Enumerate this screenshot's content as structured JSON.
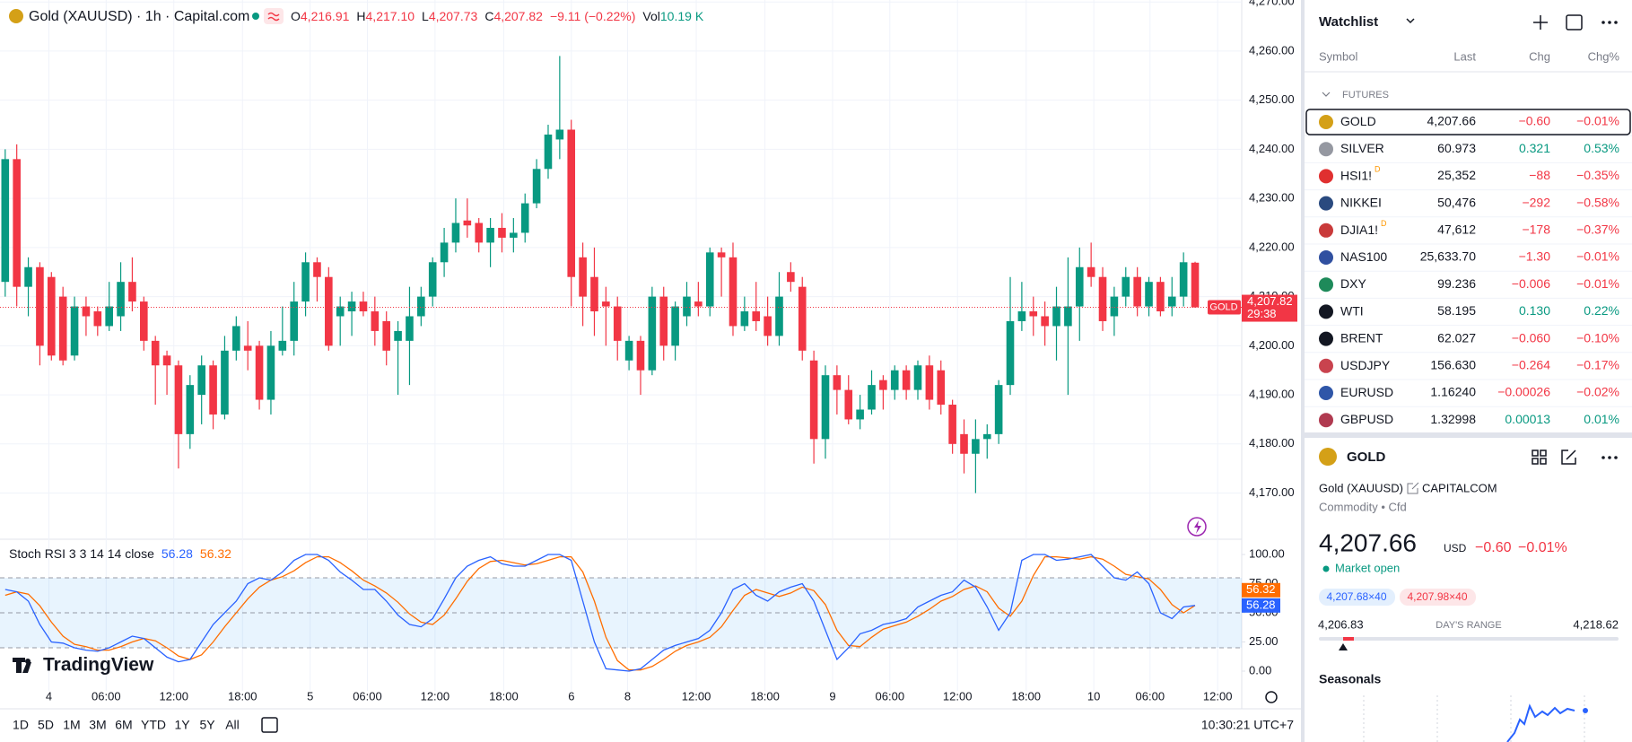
{
  "header": {
    "symbol": "Gold (XAUUSD) · 1h · Capital.com",
    "ohlc": [
      {
        "key": "O",
        "value": "4,216.91"
      },
      {
        "key": "H",
        "value": "4,217.10"
      },
      {
        "key": "L",
        "value": "4,207.73"
      },
      {
        "key": "C",
        "value": "4,207.82"
      }
    ],
    "change": "−9.11 (−0.22%)",
    "vol_key": "Vol",
    "vol": "10.19 K"
  },
  "chart": {
    "ylim": [
      4160.6,
      4270.4
    ],
    "yticks": [
      {
        "value": 4170,
        "label": "4,170.00"
      },
      {
        "value": 4180,
        "label": "4,180.00"
      },
      {
        "value": 4190,
        "label": "4,190.00"
      },
      {
        "value": 4200,
        "label": "4,200.00"
      },
      {
        "value": 4210,
        "label": "4,210.00"
      },
      {
        "value": 4220,
        "label": "4,220.00"
      },
      {
        "value": 4230,
        "label": "4,230.00"
      },
      {
        "value": 4240,
        "label": "4,240.00"
      },
      {
        "value": 4250,
        "label": "4,250.00"
      },
      {
        "value": 4260,
        "label": "4,260.00"
      },
      {
        "value": 4270,
        "label": "4,270.00"
      }
    ],
    "up_color": "#089981",
    "down_color": "#f23645",
    "candles": [
      [
        4213,
        4240,
        4210,
        4238
      ],
      [
        4238,
        4241,
        4208,
        4212
      ],
      [
        4212,
        4218,
        4206,
        4216
      ],
      [
        4216,
        4217,
        4196,
        4200
      ],
      [
        4214,
        4215,
        4197,
        4198
      ],
      [
        4210,
        4212,
        4196,
        4197
      ],
      [
        4198,
        4210,
        4197,
        4208
      ],
      [
        4208,
        4210,
        4202,
        4206
      ],
      [
        4207,
        4208,
        4202,
        4204
      ],
      [
        4204,
        4213,
        4203,
        4208
      ],
      [
        4206,
        4217,
        4203,
        4213
      ],
      [
        4213,
        4218,
        4207,
        4209
      ],
      [
        4209,
        4210,
        4199,
        4201
      ],
      [
        4201,
        4202,
        4188,
        4196
      ],
      [
        4198,
        4199,
        4190,
        4196
      ],
      [
        4196,
        4197,
        4175,
        4182
      ],
      [
        4182,
        4194,
        4179,
        4192
      ],
      [
        4190,
        4198,
        4184,
        4196
      ],
      [
        4196,
        4197,
        4183,
        4186
      ],
      [
        4186,
        4202,
        4185,
        4199
      ],
      [
        4199,
        4206,
        4197,
        4204
      ],
      [
        4200,
        4205,
        4195,
        4199
      ],
      [
        4200,
        4201,
        4187,
        4189
      ],
      [
        4189,
        4203,
        4186,
        4200
      ],
      [
        4199,
        4208,
        4198,
        4201
      ],
      [
        4201,
        4213,
        4198,
        4209
      ],
      [
        4209,
        4219,
        4206,
        4217
      ],
      [
        4217,
        4218,
        4209,
        4214
      ],
      [
        4214,
        4216,
        4199,
        4200
      ],
      [
        4206,
        4210,
        4200,
        4208
      ],
      [
        4207,
        4211,
        4202,
        4209
      ],
      [
        4209,
        4211,
        4206,
        4207
      ],
      [
        4207,
        4210,
        4200,
        4203
      ],
      [
        4205,
        4207,
        4196,
        4199
      ],
      [
        4201,
        4205,
        4190,
        4203
      ],
      [
        4201,
        4212,
        4192,
        4206
      ],
      [
        4206,
        4212,
        4204,
        4210
      ],
      [
        4210,
        4218,
        4208,
        4217
      ],
      [
        4217,
        4224,
        4214,
        4221
      ],
      [
        4221,
        4230,
        4219,
        4225
      ],
      [
        4225.5,
        4230,
        4222,
        4224.5
      ],
      [
        4225,
        4226,
        4219,
        4221
      ],
      [
        4221,
        4226,
        4216,
        4224
      ],
      [
        4224,
        4227,
        4219,
        4222
      ],
      [
        4222,
        4226,
        4219,
        4223
      ],
      [
        4223,
        4231,
        4221,
        4229
      ],
      [
        4229,
        4238,
        4228,
        4236
      ],
      [
        4236,
        4245,
        4234,
        4243
      ],
      [
        4242,
        4259,
        4238,
        4244
      ],
      [
        4244,
        4246,
        4208,
        4214
      ],
      [
        4218,
        4221,
        4204,
        4210
      ],
      [
        4214,
        4220,
        4202,
        4207
      ],
      [
        4209,
        4212,
        4200,
        4208
      ],
      [
        4208,
        4210,
        4197,
        4201
      ],
      [
        4197,
        4202,
        4195,
        4201
      ],
      [
        4201,
        4202,
        4190,
        4195
      ],
      [
        4195,
        4212,
        4194,
        4210
      ],
      [
        4210,
        4212,
        4197,
        4200
      ],
      [
        4200,
        4209,
        4197,
        4208
      ],
      [
        4206,
        4213,
        4204,
        4210
      ],
      [
        4209,
        4213,
        4206,
        4208
      ],
      [
        4208,
        4220,
        4206,
        4219
      ],
      [
        4219,
        4220,
        4210,
        4218
      ],
      [
        4218,
        4221,
        4202,
        4204
      ],
      [
        4204,
        4210,
        4203,
        4207
      ],
      [
        4207,
        4213,
        4203,
        4205
      ],
      [
        4206,
        4210,
        4200,
        4202
      ],
      [
        4202,
        4215,
        4200,
        4210
      ],
      [
        4215,
        4217,
        4211,
        4213
      ],
      [
        4212,
        4214,
        4197,
        4199
      ],
      [
        4197,
        4199,
        4176,
        4181
      ],
      [
        4181,
        4196,
        4177,
        4194
      ],
      [
        4194,
        4196,
        4186,
        4191
      ],
      [
        4191,
        4194,
        4184,
        4185
      ],
      [
        4185,
        4190,
        4183,
        4187
      ],
      [
        4187,
        4195,
        4186,
        4192
      ],
      [
        4193,
        4194,
        4187,
        4191
      ],
      [
        4191,
        4196,
        4189,
        4195
      ],
      [
        4195,
        4196,
        4189,
        4191
      ],
      [
        4191,
        4197,
        4189,
        4196
      ],
      [
        4196,
        4198,
        4187,
        4189
      ],
      [
        4195,
        4197,
        4186,
        4188
      ],
      [
        4188,
        4189,
        4178,
        4180
      ],
      [
        4182,
        4185,
        4174,
        4178
      ],
      [
        4178,
        4185,
        4170,
        4181
      ],
      [
        4181,
        4184,
        4177,
        4182
      ],
      [
        4182,
        4193,
        4180,
        4192
      ],
      [
        4192,
        4214,
        4190,
        4205
      ],
      [
        4205,
        4213,
        4203,
        4207
      ],
      [
        4207,
        4210,
        4202,
        4206
      ],
      [
        4206,
        4209,
        4200,
        4204
      ],
      [
        4204,
        4212,
        4197,
        4208
      ],
      [
        4204,
        4218,
        4190,
        4208
      ],
      [
        4208,
        4220,
        4201,
        4216
      ],
      [
        4216,
        4221,
        4212,
        4214
      ],
      [
        4214,
        4216,
        4203,
        4205
      ],
      [
        4206,
        4212,
        4202,
        4210
      ],
      [
        4210,
        4216,
        4208,
        4214
      ],
      [
        4214,
        4216,
        4206,
        4208
      ],
      [
        4208,
        4214,
        4206,
        4213
      ],
      [
        4213,
        4214,
        4206,
        4207
      ],
      [
        4208,
        4214,
        4206,
        4210
      ],
      [
        4210,
        4219,
        4208,
        4217
      ],
      [
        4216.91,
        4217.1,
        4207.73,
        4207.82
      ]
    ],
    "last_price": {
      "symbol": "GOLD",
      "value": 4207.82,
      "label": "4,207.82",
      "countdown": "29:38"
    }
  },
  "x_axis": {
    "labels": [
      "4",
      "06:00",
      "12:00",
      "18:00",
      "5",
      "06:00",
      "12:00",
      "18:00",
      "6",
      "8",
      "12:00",
      "18:00",
      "9",
      "06:00",
      "12:00",
      "18:00",
      "10",
      "06:00",
      "12:00"
    ]
  },
  "stoch": {
    "title": "Stoch RSI 3 3 14 14 close",
    "ylim": [
      0,
      100
    ],
    "yticks": [
      {
        "value": 0,
        "label": "0.00"
      },
      {
        "value": 25,
        "label": "25.00"
      },
      {
        "value": 50,
        "label": "50.00"
      },
      {
        "value": 75,
        "label": "75.00"
      },
      {
        "value": 100,
        "label": "100.00"
      }
    ],
    "bands": [
      20,
      50,
      80
    ],
    "k": {
      "color": "#2962ff",
      "values": [
        70,
        68,
        60,
        40,
        25,
        24,
        20,
        18,
        17,
        20,
        25,
        30,
        28,
        20,
        12,
        8,
        10,
        25,
        40,
        50,
        60,
        75,
        80,
        78,
        85,
        95,
        100,
        100,
        95,
        85,
        78,
        70,
        70,
        60,
        48,
        40,
        38,
        45,
        62,
        80,
        90,
        95,
        98,
        92,
        90,
        90,
        95,
        100,
        100,
        95,
        60,
        25,
        2,
        1,
        0,
        2,
        10,
        18,
        22,
        25,
        28,
        35,
        50,
        70,
        75,
        65,
        60,
        68,
        72,
        75,
        60,
        35,
        10,
        20,
        32,
        35,
        40,
        42,
        45,
        55,
        60,
        65,
        68,
        78,
        72,
        55,
        35,
        50,
        95,
        100,
        100,
        95,
        96,
        98,
        100,
        90,
        80,
        78,
        85,
        75,
        50,
        45,
        55,
        56.28
      ]
    },
    "d": {
      "color": "#ff6d00",
      "values": [
        65,
        68,
        66,
        56,
        42,
        30,
        23,
        21,
        18,
        18,
        21,
        25,
        28,
        26,
        20,
        13,
        10,
        14,
        25,
        38,
        50,
        62,
        72,
        78,
        81,
        86,
        93,
        98,
        98,
        93,
        86,
        78,
        73,
        67,
        59,
        49,
        42,
        40,
        48,
        62,
        77,
        88,
        94,
        95,
        93,
        91,
        92,
        95,
        98,
        98,
        85,
        60,
        29,
        9,
        1,
        1,
        4,
        10,
        17,
        22,
        25,
        29,
        38,
        52,
        65,
        70,
        67,
        64,
        67,
        72,
        69,
        57,
        35,
        22,
        21,
        29,
        36,
        39,
        42,
        47,
        53,
        60,
        64,
        70,
        73,
        68,
        54,
        47,
        60,
        82,
        98,
        98,
        97,
        96,
        98,
        96,
        90,
        83,
        81,
        79,
        70,
        57,
        50,
        56.32
      ]
    }
  },
  "logo": "TradingView",
  "toolbar": {
    "ranges": [
      "1D",
      "5D",
      "1M",
      "3M",
      "6M",
      "YTD",
      "1Y",
      "5Y",
      "All"
    ],
    "clock": "10:30:21 UTC+7"
  },
  "watchlist": {
    "title": "Watchlist",
    "columns": [
      "Symbol",
      "Last",
      "Chg",
      "Chg%"
    ],
    "group": "FUTURES",
    "rows": [
      {
        "icon": "#d4a017",
        "symbol": "GOLD",
        "last": "4,207.66",
        "chg": "−0.60",
        "chg_pct": "−0.01%"
      },
      {
        "icon": "#9598a1",
        "symbol": "SILVER",
        "last": "60.973",
        "chg": "0.321",
        "chg_pct": "0.53%"
      },
      {
        "icon": "#e03030",
        "symbol": "HSI1!",
        "badge": "D",
        "last": "25,352",
        "chg": "−88",
        "chg_pct": "−0.35%"
      },
      {
        "icon": "#2a4a7f",
        "symbol": "NIKKEI",
        "last": "50,476",
        "chg": "−292",
        "chg_pct": "−0.58%"
      },
      {
        "icon": "#c93a3a",
        "symbol": "DJIA1!",
        "badge": "D",
        "last": "47,612",
        "chg": "−178",
        "chg_pct": "−0.37%"
      },
      {
        "icon": "#3050a0",
        "symbol": "NAS100",
        "last": "25,633.70",
        "chg": "−1.30",
        "chg_pct": "−0.01%"
      },
      {
        "icon": "#1e8a5a",
        "symbol": "DXY",
        "last": "99.236",
        "chg": "−0.006",
        "chg_pct": "−0.01%"
      },
      {
        "icon": "#131722",
        "symbol": "WTI",
        "last": "58.195",
        "chg": "0.130",
        "chg_pct": "0.22%"
      },
      {
        "icon": "#131722",
        "symbol": "BRENT",
        "last": "62.027",
        "chg": "−0.060",
        "chg_pct": "−0.10%"
      },
      {
        "icon": "#c9434e",
        "symbol": "USDJPY",
        "last": "156.630",
        "chg": "−0.264",
        "chg_pct": "−0.17%"
      },
      {
        "icon": "#2f56a8",
        "symbol": "EURUSD",
        "last": "1.16240",
        "chg": "−0.00026",
        "chg_pct": "−0.02%"
      },
      {
        "icon": "#b03a50",
        "symbol": "GBPUSD",
        "last": "1.32998",
        "chg": "0.00013",
        "chg_pct": "0.01%"
      }
    ]
  },
  "details": {
    "symbol": "GOLD",
    "name": "Gold (XAUUSD)",
    "exchange": "CAPITALCOM",
    "kind": "Commodity • Cfd",
    "price": "4,207.66",
    "currency": "USD",
    "change": "−0.60",
    "change_pct": "−0.01%",
    "status": "Market open",
    "bid": "4,207.68×40",
    "ask": "4,207.98×40",
    "range_low": "4,206.83",
    "range_title": "DAY'S RANGE",
    "range_high": "4,218.62",
    "seasonals": "Seasonals"
  }
}
